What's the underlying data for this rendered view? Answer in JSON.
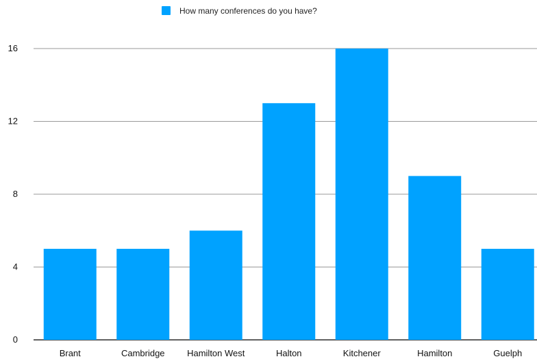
{
  "chart_data": {
    "type": "bar",
    "categories": [
      "Brant",
      "Cambridge",
      "Hamilton West",
      "Halton",
      "Kitchener",
      "Hamilton",
      "Guelph"
    ],
    "series": [
      {
        "name": "How many conferences do you have?",
        "values": [
          5,
          5,
          6,
          13,
          16,
          9,
          5
        ],
        "color": "#00A2FF"
      }
    ],
    "yticks": [
      0,
      4,
      8,
      12,
      16
    ],
    "ylim": [
      0,
      16
    ],
    "grid": true,
    "legend_position": "top-center"
  }
}
